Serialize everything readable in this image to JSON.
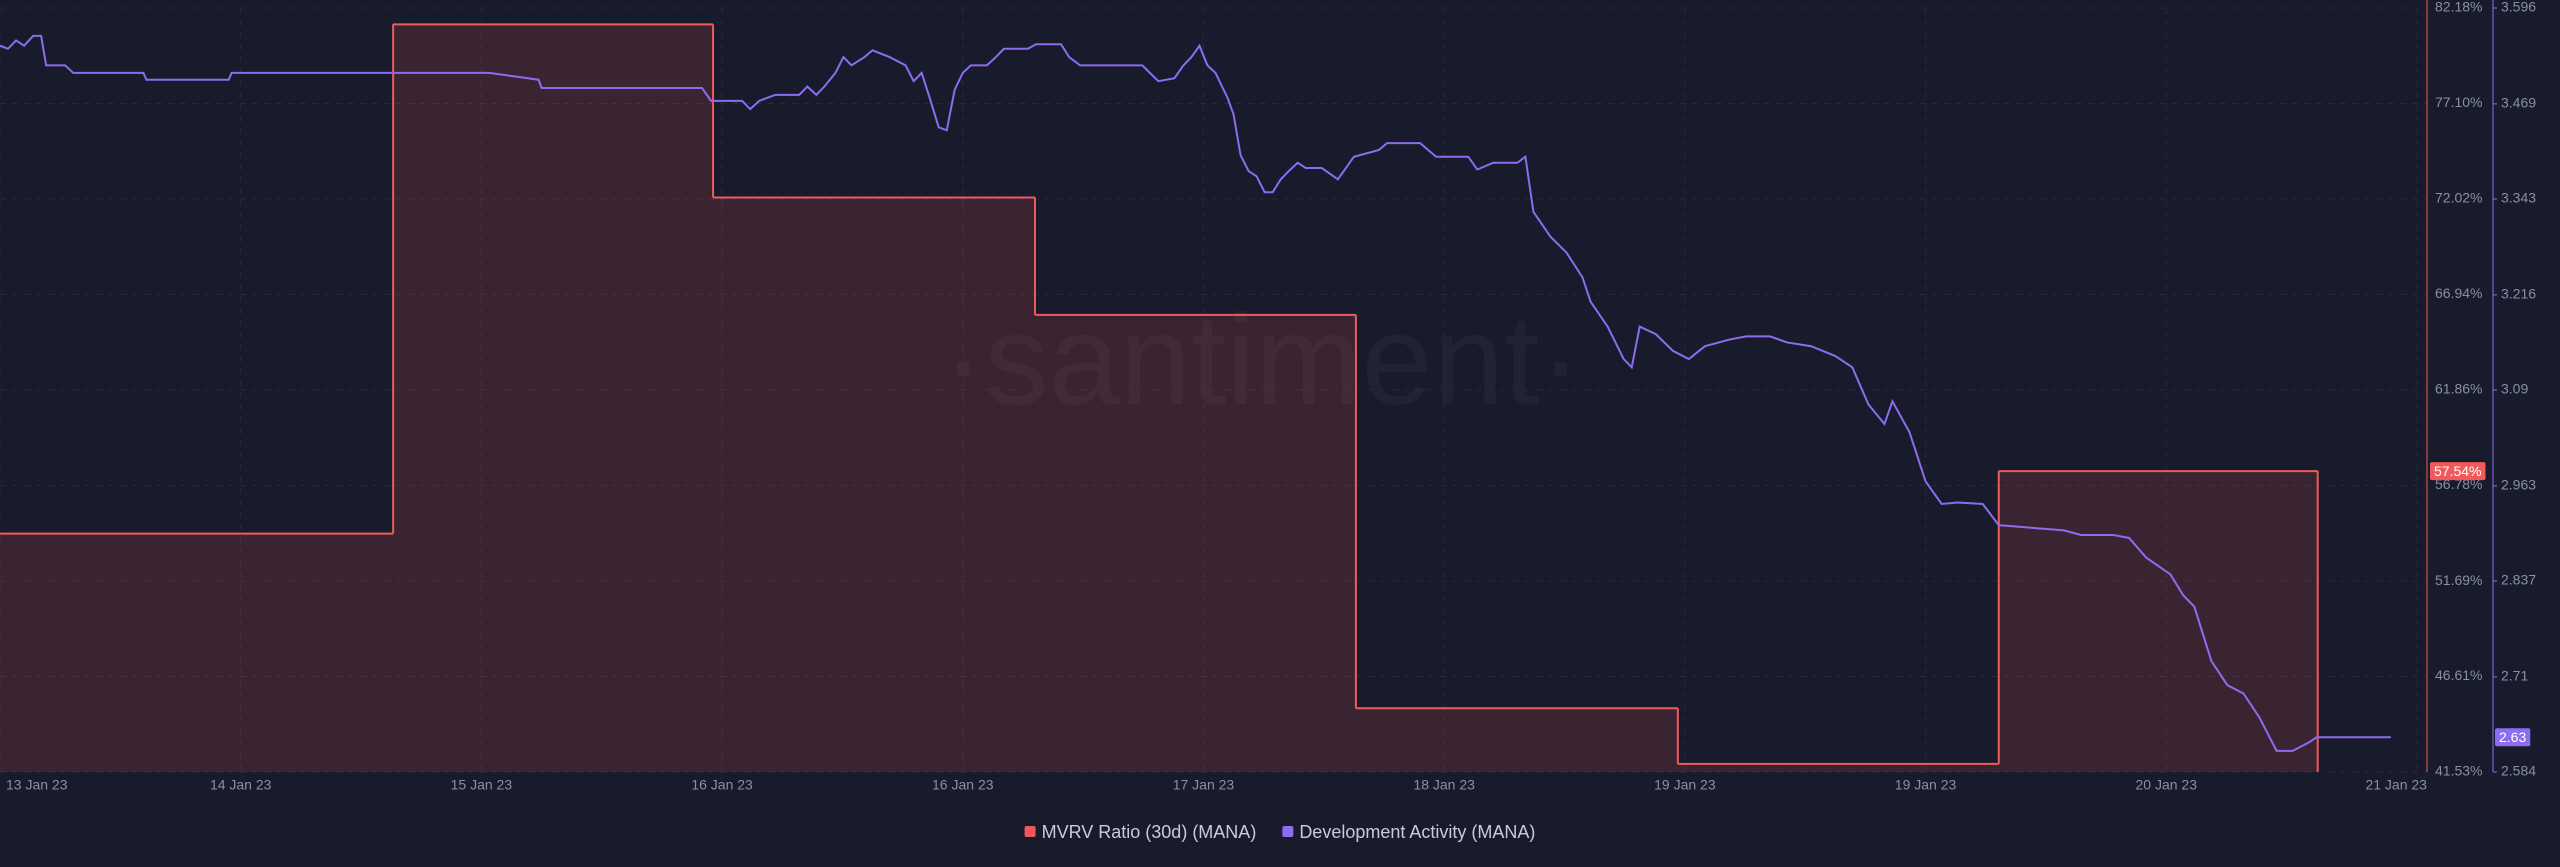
{
  "chart_data": {
    "type": "line",
    "watermark": "·santiment·",
    "xlim": [
      0,
      242
    ],
    "xticks": [
      {
        "value": 0,
        "label": "13 Jan 23"
      },
      {
        "value": 24,
        "label": "14 Jan 23"
      },
      {
        "value": 48,
        "label": "15 Jan 23"
      },
      {
        "value": 72,
        "label": "16 Jan 23"
      },
      {
        "value": 96,
        "label": "16 Jan 23"
      },
      {
        "value": 120,
        "label": "17 Jan 23"
      },
      {
        "value": 144,
        "label": "18 Jan 23"
      },
      {
        "value": 168,
        "label": "19 Jan 23"
      },
      {
        "value": 192,
        "label": "19 Jan 23"
      },
      {
        "value": 216,
        "label": "20 Jan 23"
      },
      {
        "value": 241,
        "label": "21 Jan 23"
      }
    ],
    "ylim": [
      41.53,
      82.18
    ],
    "yticks": [
      {
        "value": 82.18,
        "label": "82.18%"
      },
      {
        "value": 77.1,
        "label": "77.10%"
      },
      {
        "value": 72.02,
        "label": "72.02%"
      },
      {
        "value": 66.94,
        "label": "66.94%"
      },
      {
        "value": 61.86,
        "label": "61.86%"
      },
      {
        "value": 56.78,
        "label": "56.78%"
      },
      {
        "value": 51.69,
        "label": "51.69%"
      },
      {
        "value": 46.61,
        "label": "46.61%"
      },
      {
        "value": 41.53,
        "label": "41.53%"
      }
    ],
    "y2lim": [
      2.584,
      3.596
    ],
    "y2ticks": [
      3.596,
      3.469,
      3.343,
      3.216,
      3.09,
      2.963,
      2.837,
      2.71,
      2.584
    ],
    "grid": true,
    "legend": "bottom",
    "series": [
      {
        "name": "MVRV Ratio (30d) (MANA)",
        "color": "#f05a5a",
        "step": true,
        "area": true,
        "x": [
          0,
          39.2,
          71.1,
          103.2,
          135.2,
          167.3,
          199.3
        ],
        "x_end": 231.1,
        "values": [
          54.21,
          81.31,
          72.1,
          65.85,
          44.92,
          41.96,
          57.54
        ],
        "value_labels": [
          null,
          null,
          null,
          null,
          null,
          null,
          "57.54%"
        ]
      },
      {
        "name": "Development Activity (MANA)",
        "color": "#8c6cf0",
        "axis": "y2",
        "x": [
          0,
          0.8,
          1.6,
          2.4,
          3.3,
          4.1,
          4.6,
          6.5,
          7.3,
          14.3,
          14.6,
          22.8,
          23.1,
          48.8,
          53.7,
          54.0,
          70.0,
          70.9,
          74.0,
          74.8,
          75.7,
          77.3,
          79.7,
          80.5,
          81.4,
          82.2,
          83.3,
          84.1,
          84.9,
          86.2,
          87.0,
          88.7,
          90.3,
          91.1,
          91.9,
          92.7,
          93.6,
          94.4,
          95.2,
          96.0,
          96.8,
          98.4,
          99.3,
          100.1,
          102.5,
          103.3,
          105.8,
          106.6,
          107.7,
          113.9,
          115.5,
          117.1,
          118.0,
          118.8,
          119.6,
          120.4,
          121.2,
          122.4,
          123.0,
          123.7,
          124.5,
          125.3,
          126.1,
          126.9,
          127.7,
          128.5,
          129.4,
          130.2,
          131.8,
          133.4,
          134.2,
          135.0,
          137.5,
          138.3,
          141.6,
          143.2,
          146.4,
          147.3,
          148.9,
          151.3,
          152.1,
          152.9,
          154.6,
          156.2,
          157.8,
          158.6,
          160.3,
          161.9,
          162.7,
          163.5,
          165.1,
          166.8,
          168.4,
          170.0,
          172.5,
          174.1,
          176.5,
          178.2,
          180.6,
          183.0,
          184.7,
          186.3,
          187.9,
          188.7,
          190.4,
          192.0,
          193.6,
          195.2,
          197.7,
          199.3,
          205.8,
          207.5,
          210.7,
          212.3,
          214.0,
          216.4,
          217.7,
          218.8,
          220.5,
          222.1,
          223.7,
          225.3,
          227.0,
          228.6,
          230.2,
          231.0,
          238.4
        ],
        "values": [
          3.546,
          3.542,
          3.553,
          3.546,
          3.559,
          3.559,
          3.52,
          3.52,
          3.51,
          3.51,
          3.501,
          3.501,
          3.51,
          3.51,
          3.501,
          3.49,
          3.49,
          3.473,
          3.473,
          3.462,
          3.473,
          3.481,
          3.481,
          3.492,
          3.481,
          3.492,
          3.51,
          3.531,
          3.52,
          3.531,
          3.54,
          3.531,
          3.52,
          3.499,
          3.51,
          3.477,
          3.438,
          3.434,
          3.488,
          3.51,
          3.52,
          3.52,
          3.531,
          3.542,
          3.542,
          3.548,
          3.548,
          3.531,
          3.52,
          3.52,
          3.499,
          3.503,
          3.52,
          3.531,
          3.546,
          3.52,
          3.51,
          3.477,
          3.455,
          3.401,
          3.38,
          3.373,
          3.352,
          3.352,
          3.369,
          3.38,
          3.391,
          3.384,
          3.384,
          3.369,
          3.384,
          3.399,
          3.408,
          3.417,
          3.417,
          3.399,
          3.399,
          3.382,
          3.391,
          3.391,
          3.399,
          3.326,
          3.293,
          3.272,
          3.239,
          3.207,
          3.174,
          3.131,
          3.12,
          3.174,
          3.164,
          3.142,
          3.131,
          3.148,
          3.157,
          3.161,
          3.161,
          3.153,
          3.148,
          3.135,
          3.12,
          3.071,
          3.045,
          3.075,
          3.034,
          2.969,
          2.939,
          2.941,
          2.939,
          2.911,
          2.904,
          2.898,
          2.898,
          2.894,
          2.868,
          2.846,
          2.818,
          2.803,
          2.731,
          2.699,
          2.688,
          2.656,
          2.612,
          2.612,
          2.623,
          2.63,
          2.63
        ]
      }
    ]
  }
}
